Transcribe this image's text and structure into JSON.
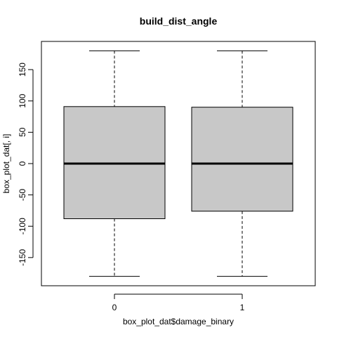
{
  "chart_data": {
    "type": "box",
    "title": "build_dist_angle",
    "xlabel": "box_plot_dat$damage_binary",
    "ylabel": "box_plot_dat[, i]",
    "ylim": [
      -195,
      195
    ],
    "yticks": [
      -150,
      -100,
      -50,
      0,
      50,
      100,
      150
    ],
    "categories": [
      "0",
      "1"
    ],
    "boxes": [
      {
        "category": "0",
        "min": -180,
        "q1": -88,
        "median": 0,
        "q3": 91,
        "max": 180
      },
      {
        "category": "1",
        "min": -180,
        "q1": -76,
        "median": 0,
        "q3": 90,
        "max": 180
      }
    ],
    "box_color": "#c8c8c8"
  }
}
